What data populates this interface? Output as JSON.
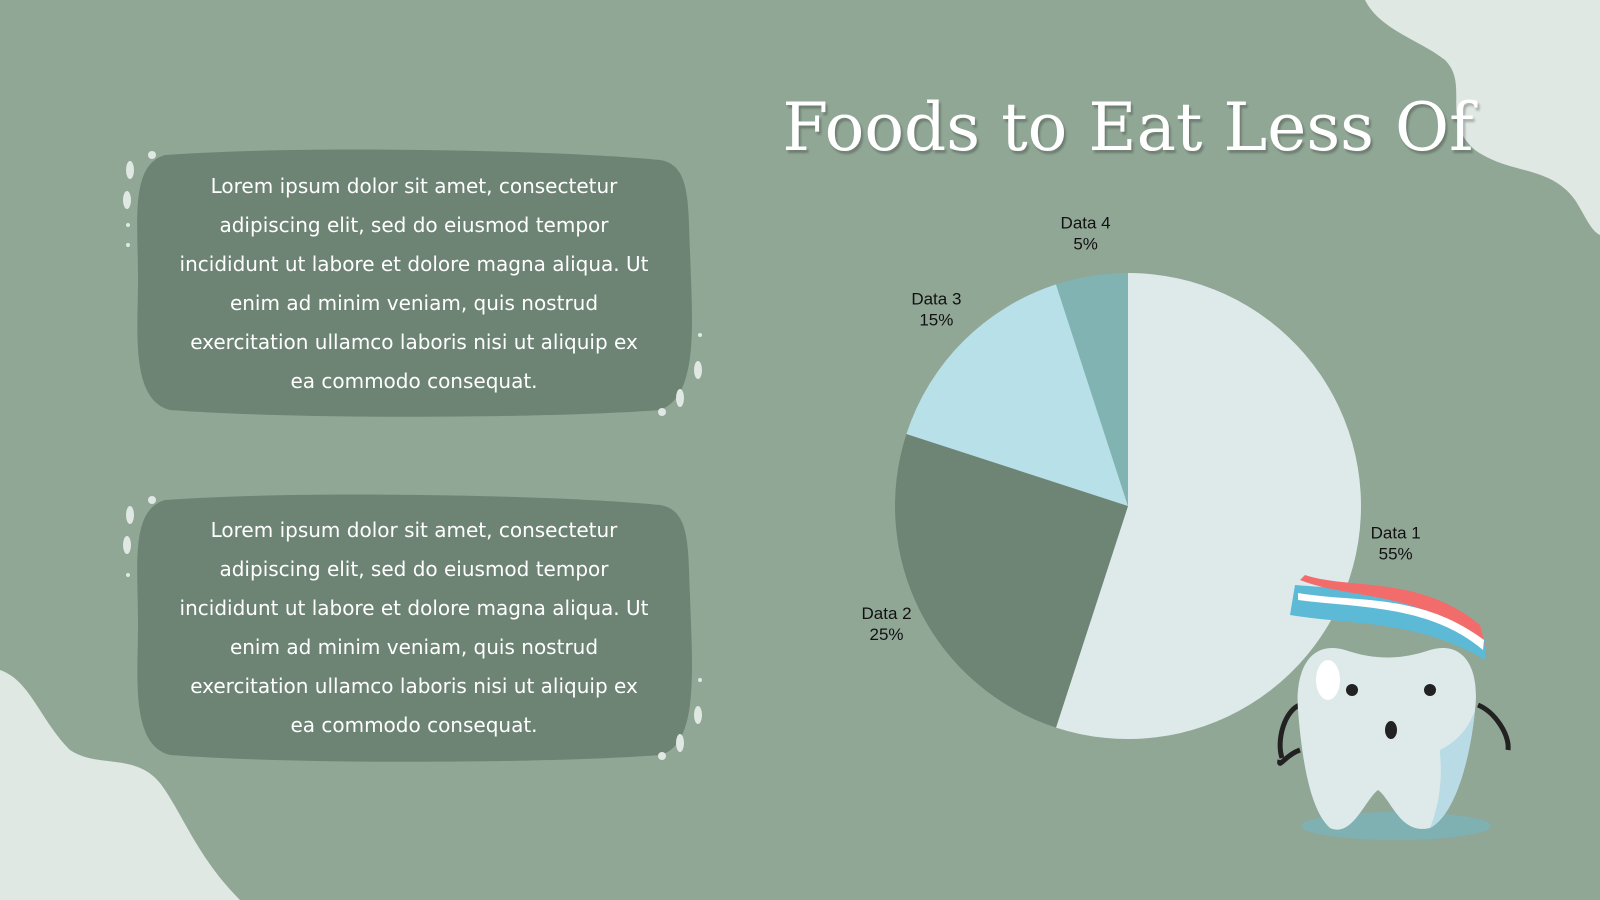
{
  "chart_data": {
    "type": "pie",
    "title": "Foods to Eat Less Of",
    "categories": [
      "Data 1",
      "Data 2",
      "Data 3",
      "Data 4"
    ],
    "values": [
      55,
      25,
      15,
      5
    ],
    "value_labels": [
      "55%",
      "25%",
      "15%",
      "5%"
    ],
    "colors": [
      "#deeaea",
      "#6e8576",
      "#b8e0e8",
      "#80b3b2"
    ]
  },
  "text_boxes": [
    "Lorem ipsum dolor sit amet, consectetur adipiscing elit, sed do eiusmod tempor incididunt ut labore et dolore magna aliqua. Ut enim ad minim veniam, quis nostrud exercitation ullamco laboris nisi ut aliquip ex ea commodo consequat.",
    "Lorem ipsum dolor sit amet, consectetur adipiscing elit, sed do eiusmod tempor incididunt ut labore et dolore magna aliqua. Ut enim ad minim veniam, quis nostrud exercitation ullamco laboris nisi ut aliquip ex ea commodo consequat."
  ]
}
